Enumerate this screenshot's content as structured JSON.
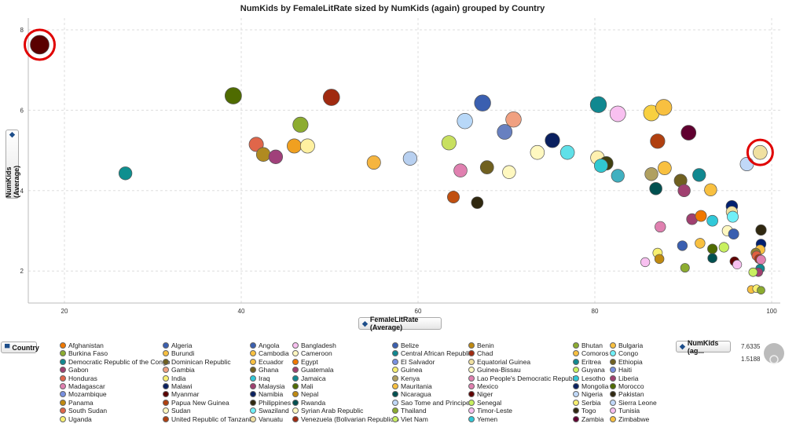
{
  "chart_data": {
    "type": "scatter",
    "title": "NumKids by FemaleLitRate sized by NumKids (again) grouped by Country",
    "xlabel": "FemaleLitRate (Average)",
    "ylabel": "NumKids (Average)",
    "xlim": [
      16,
      101
    ],
    "ylim": [
      1.3,
      8.3
    ],
    "xticks": [
      20,
      40,
      60,
      80,
      100
    ],
    "yticks": [
      2,
      4,
      6,
      8
    ],
    "grid": true,
    "size_legend": {
      "label": "NumKids (ag...",
      "max": "7.6335",
      "min": "1.5188"
    },
    "highlight_color": "#e00000",
    "highlights": [
      [
        17.2,
        7.63
      ],
      [
        98.7,
        4.95
      ]
    ],
    "points": [
      [
        17.2,
        7.63,
        "#5a0000"
      ],
      [
        26.9,
        4.43,
        "#0f8f8f"
      ],
      [
        39.1,
        6.36,
        "#4f6b00"
      ],
      [
        50.2,
        6.32,
        "#a02a10"
      ],
      [
        41.7,
        5.15,
        "#e0664a"
      ],
      [
        42.5,
        4.9,
        "#b08a20"
      ],
      [
        43.9,
        4.84,
        "#a0407a"
      ],
      [
        46.7,
        5.64,
        "#8cac30"
      ],
      [
        46.0,
        5.11,
        "#f0a020"
      ],
      [
        47.5,
        5.11,
        "#fff0a0"
      ],
      [
        55.0,
        4.7,
        "#f5b540"
      ],
      [
        59.1,
        4.8,
        "#b8d0f0"
      ],
      [
        63.5,
        5.19,
        "#c8e060"
      ],
      [
        65.3,
        5.73,
        "#b8d8f8"
      ],
      [
        67.3,
        6.18,
        "#3a5fb0"
      ],
      [
        70.8,
        5.77,
        "#f0a080"
      ],
      [
        69.8,
        5.46,
        "#6880c0"
      ],
      [
        64.8,
        4.5,
        "#e080b0"
      ],
      [
        67.8,
        4.58,
        "#706020"
      ],
      [
        70.3,
        4.46,
        "#fff8c0"
      ],
      [
        64.0,
        3.84,
        "#c05010"
      ],
      [
        66.7,
        3.7,
        "#302810"
      ],
      [
        73.5,
        4.95,
        "#fff8c0"
      ],
      [
        75.2,
        5.25,
        "#0a2060"
      ],
      [
        76.9,
        4.95,
        "#60e0e8"
      ],
      [
        80.4,
        6.14,
        "#108890"
      ],
      [
        82.6,
        5.91,
        "#f8c0f0"
      ],
      [
        86.4,
        5.93,
        "#f8d040"
      ],
      [
        87.8,
        6.07,
        "#f8c040"
      ],
      [
        80.3,
        4.82,
        "#fff0b0"
      ],
      [
        81.3,
        4.68,
        "#404010"
      ],
      [
        80.7,
        4.62,
        "#30c8d0"
      ],
      [
        82.6,
        4.37,
        "#40b0c0"
      ],
      [
        87.1,
        5.23,
        "#b04010"
      ],
      [
        90.6,
        5.44,
        "#600030"
      ],
      [
        98.7,
        4.95,
        "#f0e0a0"
      ],
      [
        97.2,
        4.66,
        "#c0d8f8"
      ],
      [
        86.4,
        4.41,
        "#b0a060"
      ],
      [
        87.9,
        4.56,
        "#f8c040"
      ],
      [
        89.7,
        4.25,
        "#706020"
      ],
      [
        91.8,
        4.39,
        "#108890"
      ],
      [
        86.9,
        4.05,
        "#005050"
      ],
      [
        90.1,
        4.0,
        "#a04070"
      ],
      [
        93.1,
        4.02,
        "#f8c040"
      ],
      [
        95.5,
        3.61,
        "#002070"
      ],
      [
        95.5,
        3.47,
        "#f0e0a0"
      ],
      [
        95.6,
        3.35,
        "#70f0f8"
      ],
      [
        91.0,
        3.29,
        "#a04070"
      ],
      [
        92.0,
        3.37,
        "#f07800"
      ],
      [
        93.3,
        3.25,
        "#30c8d8"
      ],
      [
        87.4,
        3.1,
        "#e080b0"
      ],
      [
        95.0,
        3.0,
        "#fff8c0"
      ],
      [
        95.7,
        2.92,
        "#3a5fb0"
      ],
      [
        98.8,
        3.02,
        "#302810"
      ],
      [
        89.9,
        2.63,
        "#3a5fb0"
      ],
      [
        91.9,
        2.69,
        "#f8c040"
      ],
      [
        93.3,
        2.55,
        "#4f6b00"
      ],
      [
        94.6,
        2.59,
        "#c8f060"
      ],
      [
        93.3,
        2.32,
        "#005050"
      ],
      [
        87.1,
        2.45,
        "#f8f070"
      ],
      [
        87.3,
        2.3,
        "#c08a10"
      ],
      [
        85.7,
        2.22,
        "#f8c0f0"
      ],
      [
        90.2,
        2.08,
        "#8cac30"
      ],
      [
        95.8,
        2.24,
        "#600000"
      ],
      [
        96.1,
        2.16,
        "#f8c0f0"
      ],
      [
        98.8,
        2.67,
        "#002070"
      ],
      [
        98.7,
        2.53,
        "#f8c040"
      ],
      [
        98.2,
        2.45,
        "#908030"
      ],
      [
        98.3,
        2.38,
        "#e06040"
      ],
      [
        98.6,
        2.3,
        "#b03010"
      ],
      [
        98.8,
        2.28,
        "#e080b0"
      ],
      [
        98.7,
        2.06,
        "#108890"
      ],
      [
        98.5,
        1.97,
        "#a04070"
      ],
      [
        97.9,
        1.97,
        "#c8f060"
      ],
      [
        97.7,
        1.54,
        "#f8c040"
      ],
      [
        98.3,
        1.56,
        "#f8f070"
      ],
      [
        98.8,
        1.52,
        "#8cac30"
      ]
    ]
  },
  "legend": {
    "title": "Country",
    "columns": [
      [
        [
          "Afghanistan",
          "#f07800"
        ],
        [
          "Burkina Faso",
          "#8cac30"
        ],
        [
          "Democratic Republic of the Congo",
          "#108890"
        ],
        [
          "Gabon",
          "#a04070"
        ],
        [
          "Honduras",
          "#e0664a"
        ],
        [
          "Madagascar",
          "#e080b0"
        ],
        [
          "Mozambique",
          "#7890e0"
        ],
        [
          "Panama",
          "#c08a10"
        ],
        [
          "South Sudan",
          "#e0664a"
        ],
        [
          "Uganda",
          "#f8f070"
        ]
      ],
      [
        [
          "Algeria",
          "#3a5fb0"
        ],
        [
          "Burundi",
          "#f8c040"
        ],
        [
          "Dominican Republic",
          "#706020"
        ],
        [
          "Gambia",
          "#f0a080"
        ],
        [
          "India",
          "#f8f070"
        ],
        [
          "Malawi",
          "#0a2060"
        ],
        [
          "Myanmar",
          "#5a0000"
        ],
        [
          "Papua New Guinea",
          "#b04010"
        ],
        [
          "Sudan",
          "#fff8c0"
        ],
        [
          "United Republic of Tanzania",
          "#b04010"
        ]
      ],
      [
        [
          "Angola",
          "#3a5fb0"
        ],
        [
          "Cambodia",
          "#f8c040"
        ],
        [
          "Ecuador",
          "#f8c040"
        ],
        [
          "Ghana",
          "#706020"
        ],
        [
          "Iraq",
          "#30c8d8"
        ],
        [
          "Malaysia",
          "#a04070"
        ],
        [
          "Namibia",
          "#0a2060"
        ],
        [
          "Philippines",
          "#302810"
        ],
        [
          "Swaziland",
          "#70f0f8"
        ],
        [
          "Vanuatu",
          "#f0e0a0"
        ]
      ],
      [
        [
          "Bangladesh",
          "#f8c0f0"
        ],
        [
          "Cameroon",
          "#fff8c0"
        ],
        [
          "Egypt",
          "#f07800"
        ],
        [
          "Guatemala",
          "#a04070"
        ],
        [
          "Jamaica",
          "#108890"
        ],
        [
          "Mali",
          "#4f6b00"
        ],
        [
          "Nepal",
          "#c08a10"
        ],
        [
          "Rwanda",
          "#005050"
        ],
        [
          "Syrian Arab Republic",
          "#fff8c0"
        ],
        [
          "Venezuela (Bolivarian Republic o",
          "#a02a10"
        ]
      ],
      [
        [
          "Belize",
          "#3a5fb0"
        ],
        [
          "Central African Republic",
          "#108890"
        ],
        [
          "El Salvador",
          "#7890e0"
        ],
        [
          "Guinea",
          "#f8f070"
        ],
        [
          "Kenya",
          "#b0a060"
        ],
        [
          "Mauritania",
          "#f8c040"
        ],
        [
          "Nicaragua",
          "#005050"
        ],
        [
          "Sao Tome and Principe",
          "#c0d8f8"
        ],
        [
          "Thailand",
          "#8cac30"
        ],
        [
          "Viet Nam",
          "#c8f060"
        ]
      ],
      [
        [
          "Benin",
          "#c08a10"
        ],
        [
          "Chad",
          "#a02a10"
        ],
        [
          "Equatorial Guinea",
          "#f0e0a0"
        ],
        [
          "Guinea-Bissau",
          "#fff8c0"
        ],
        [
          "Lao People's Democratic Republic",
          "#e080b0"
        ],
        [
          "Mexico",
          "#e080b0"
        ],
        [
          "Niger",
          "#600000"
        ],
        [
          "Senegal",
          "#c8f060"
        ],
        [
          "Timor-Leste",
          "#f8c0f0"
        ],
        [
          "Yemen",
          "#30c8d8"
        ]
      ],
      [
        [
          "Bhutan",
          "#8cac30"
        ],
        [
          "Comoros",
          "#f8c040"
        ],
        [
          "Eritrea",
          "#108890"
        ],
        [
          "Guyana",
          "#c8f060"
        ],
        [
          "Lesotho",
          "#30c8d8"
        ],
        [
          "Mongolia",
          "#0a2060"
        ],
        [
          "Nigeria",
          "#c0d8f8"
        ],
        [
          "Serbia",
          "#f8f070"
        ],
        [
          "Togo",
          "#302810"
        ],
        [
          "Zambia",
          "#600030"
        ]
      ],
      [
        [
          "Bulgaria",
          "#f8c040"
        ],
        [
          "Congo",
          "#70f0f8"
        ],
        [
          "Ethiopia",
          "#706020"
        ],
        [
          "Haiti",
          "#7890e0"
        ],
        [
          "Liberia",
          "#a04070"
        ],
        [
          "Morocco",
          "#4f6b00"
        ],
        [
          "Pakistan",
          "#302810"
        ],
        [
          "Sierra Leone",
          "#c0d8f8"
        ],
        [
          "Tunisia",
          "#f8c0f0"
        ],
        [
          "Zimbabwe",
          "#f8c040"
        ]
      ]
    ]
  }
}
